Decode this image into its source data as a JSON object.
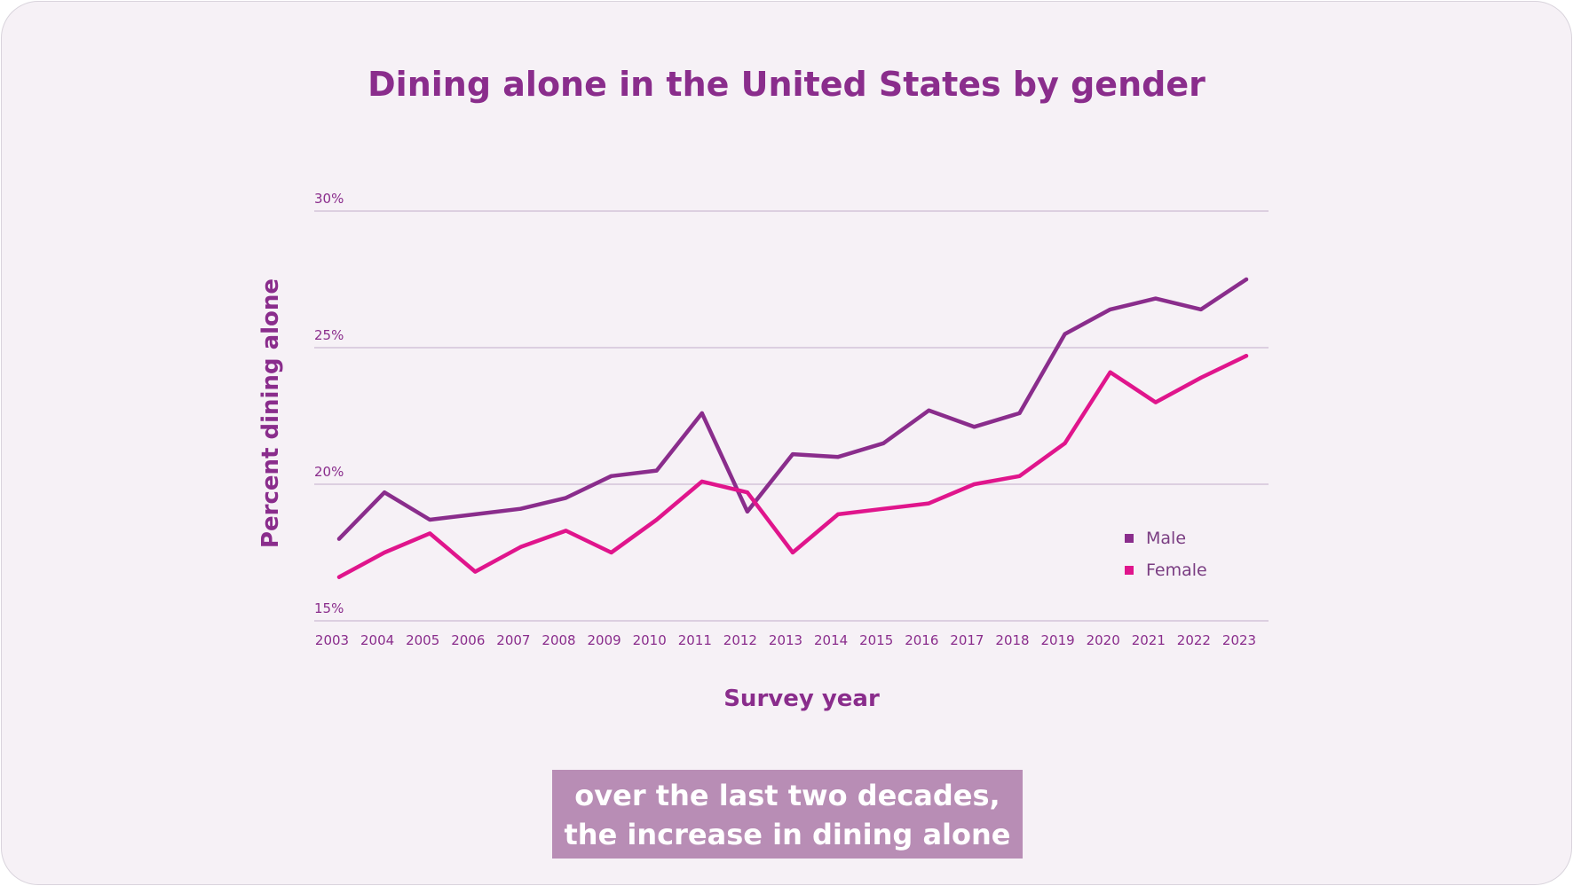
{
  "caption": {
    "line1": "over the last two decades,",
    "line2": "the increase in dining alone"
  },
  "colors": {
    "male": "#8a2d8c",
    "female": "#e0158c",
    "title": "#8a2d8c",
    "background": "#f6f1f6",
    "caption_bg": "#b88db5"
  },
  "chart_data": {
    "type": "line",
    "title": "Dining alone in the United States by gender",
    "xlabel": "Survey year",
    "ylabel": "Percent dining alone",
    "x": [
      "2003",
      "2004",
      "2005",
      "2006",
      "2007",
      "2008",
      "2009",
      "2010",
      "2011",
      "2012",
      "2013",
      "2014",
      "2015",
      "2016",
      "2017",
      "2018",
      "2019",
      "2020",
      "2021",
      "2022",
      "2023"
    ],
    "yticks": [
      15,
      20,
      25,
      30
    ],
    "ytick_labels": [
      "15%",
      "20%",
      "25%",
      "30%"
    ],
    "ylim": [
      15,
      30
    ],
    "grid": true,
    "legend_position": "bottom-right",
    "series": [
      {
        "name": "Male",
        "color": "#8a2d8c",
        "values": [
          18.0,
          19.7,
          18.7,
          18.9,
          19.1,
          19.5,
          20.3,
          20.5,
          22.6,
          19.0,
          21.1,
          21.0,
          21.5,
          22.7,
          22.1,
          22.6,
          25.5,
          26.4,
          26.8,
          26.4,
          27.5
        ]
      },
      {
        "name": "Female",
        "color": "#e0158c",
        "values": [
          16.6,
          17.5,
          18.2,
          16.8,
          17.7,
          18.3,
          17.5,
          18.7,
          20.1,
          19.7,
          17.5,
          18.9,
          19.1,
          19.3,
          20.0,
          20.3,
          21.5,
          24.1,
          23.0,
          23.9,
          24.7
        ]
      }
    ]
  }
}
